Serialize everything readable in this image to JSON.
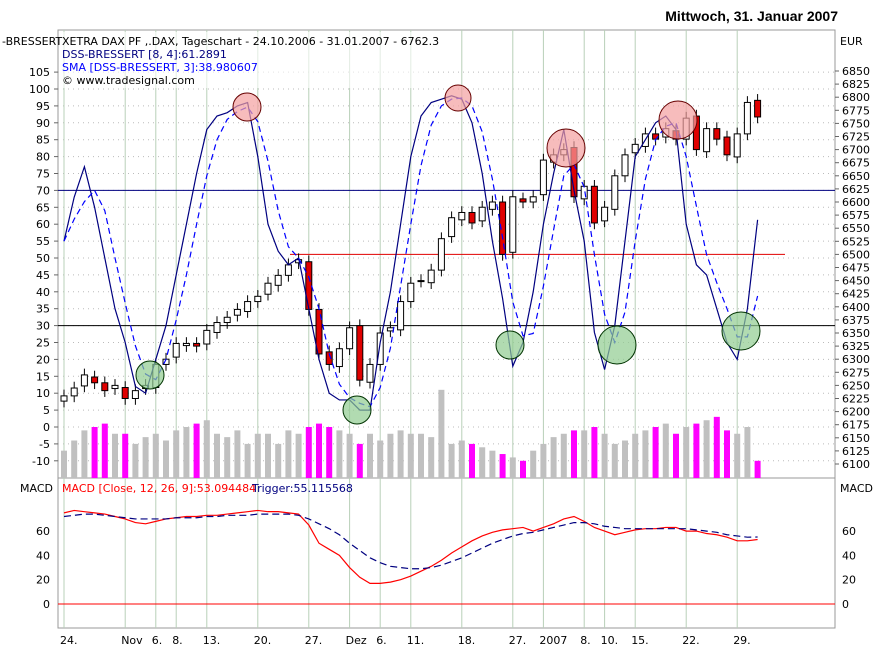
{
  "header": {
    "date_title": "Mittwoch, 31. Januar 2007"
  },
  "chart_data": {
    "type": "candlestick",
    "left_axis_label": "-BRESSERT",
    "right_axis_label": "EUR",
    "legend": {
      "instrument": "XETRA DAX PF ,.DAX, Tageschart - 24.10.2006 - 31.01.2007 - 6762.3",
      "dss": "DSS-BRESSERT [8, 4]:61.2891",
      "sma": "SMA [DSS-BRESSERT, 3]:38.980607",
      "copyright": "© www.tradesignal.com"
    },
    "price_ticks": [
      6850,
      6825,
      6800,
      6775,
      6750,
      6725,
      6700,
      6675,
      6650,
      6625,
      6600,
      6575,
      6550,
      6525,
      6500,
      6475,
      6450,
      6425,
      6400,
      6375,
      6350,
      6325,
      6300,
      6275,
      6250,
      6225,
      6200,
      6175,
      6150,
      6125,
      6100
    ],
    "osc_ticks": [
      105,
      100,
      95,
      90,
      85,
      80,
      75,
      70,
      65,
      60,
      55,
      50,
      45,
      40,
      35,
      30,
      25,
      20,
      15,
      10,
      5,
      0,
      -5,
      -10
    ],
    "osc_levels": {
      "upper": 70,
      "lower": 30,
      "price_line": 6500
    },
    "closes": [
      6230,
      6245,
      6270,
      6255,
      6240,
      6250,
      6225,
      6240,
      6250,
      6290,
      6300,
      6330,
      6330,
      6325,
      6355,
      6370,
      6380,
      6395,
      6410,
      6420,
      6445,
      6460,
      6480,
      6490,
      6395,
      6310,
      6290,
      6320,
      6360,
      6260,
      6290,
      6350,
      6360,
      6410,
      6445,
      6450,
      6470,
      6530,
      6570,
      6580,
      6560,
      6590,
      6600,
      6500,
      6610,
      6600,
      6610,
      6680,
      6690,
      6700,
      6610,
      6630,
      6560,
      6590,
      6650,
      6690,
      6710,
      6730,
      6720,
      6740,
      6720,
      6760,
      6700,
      6740,
      6720,
      6690,
      6730,
      6790,
      6762.3
    ],
    "dss": [
      55,
      68,
      77,
      65,
      50,
      35,
      25,
      12,
      10,
      20,
      30,
      45,
      60,
      75,
      88,
      92,
      93,
      95,
      96,
      80,
      60,
      52,
      48,
      50,
      35,
      20,
      10,
      8,
      8,
      5,
      5,
      25,
      40,
      60,
      80,
      92,
      96,
      97,
      98,
      97,
      90,
      75,
      55,
      38,
      18,
      25,
      40,
      60,
      75,
      88,
      70,
      55,
      28,
      17,
      30,
      55,
      80,
      85,
      90,
      92,
      88,
      60,
      48,
      45,
      35,
      25,
      20,
      35,
      61.29
    ],
    "histogram": [
      -7,
      -4,
      -1,
      0,
      1,
      -2,
      -2,
      -5,
      -3,
      -2,
      -4,
      -1,
      0,
      1,
      2,
      -2,
      -3,
      -1,
      -5,
      -2,
      -2,
      -5,
      -1,
      -2,
      0,
      1,
      0,
      -1,
      -2,
      -5,
      -2,
      -4,
      -2,
      -1,
      -2,
      -2,
      -3,
      11,
      -5,
      -4,
      -5,
      -6,
      -7,
      -8,
      -9,
      -10,
      -7,
      -5,
      -3,
      -2,
      -1,
      -1,
      0,
      -2,
      -5,
      -4,
      -2,
      -1,
      0,
      1,
      -2,
      0,
      1,
      2,
      3,
      -1,
      -2,
      0,
      -10
    ],
    "macd_ticks": [
      60,
      40,
      20,
      0
    ],
    "macd_legend": "MACD [Close, 12, 26, 9]:53.094484",
    "trigger_legend": "Trigger:55.115568",
    "macd_label": "MACD",
    "macd": [
      75,
      77,
      76,
      75,
      74,
      72,
      70,
      67,
      66,
      68,
      70,
      71,
      72,
      72,
      73,
      73,
      74,
      75,
      76,
      77,
      76,
      76,
      75,
      74,
      65,
      50,
      45,
      40,
      30,
      22,
      17,
      17,
      18,
      20,
      23,
      27,
      31,
      36,
      42,
      47,
      52,
      56,
      59,
      61,
      62,
      63,
      60,
      63,
      66,
      70,
      72,
      68,
      63,
      60,
      57,
      59,
      61,
      62,
      62,
      63,
      63,
      60,
      60,
      58,
      57,
      55,
      52,
      52,
      53.09
    ],
    "trigger": [
      72,
      73,
      74,
      74,
      73,
      72,
      71,
      70,
      70,
      70,
      70,
      71,
      71,
      71,
      72,
      72,
      73,
      73,
      73,
      74,
      74,
      74,
      74,
      73,
      70,
      66,
      62,
      57,
      50,
      44,
      38,
      34,
      31,
      30,
      29,
      29,
      30,
      32,
      35,
      38,
      42,
      46,
      50,
      53,
      56,
      58,
      59,
      61,
      63,
      65,
      67,
      67,
      66,
      64,
      63,
      62,
      62,
      62,
      62,
      62,
      62,
      62,
      61,
      60,
      59,
      57,
      56,
      55,
      55.12
    ],
    "x_ticks": [
      {
        "i": 0,
        "label": "24."
      },
      {
        "i": 6,
        "label": "Nov"
      },
      {
        "i": 9,
        "label": "6."
      },
      {
        "i": 11,
        "label": "8."
      },
      {
        "i": 14,
        "label": "13."
      },
      {
        "i": 19,
        "label": "20."
      },
      {
        "i": 24,
        "label": "27."
      },
      {
        "i": 28,
        "label": "Dez"
      },
      {
        "i": 31,
        "label": "6."
      },
      {
        "i": 34,
        "label": "11."
      },
      {
        "i": 39,
        "label": "18."
      },
      {
        "i": 44,
        "label": "27."
      },
      {
        "i": 47,
        "label": "2007"
      },
      {
        "i": 51,
        "label": "8."
      },
      {
        "i": 53,
        "label": "10."
      },
      {
        "i": 56,
        "label": "15."
      },
      {
        "i": 61,
        "label": "22."
      },
      {
        "i": 66,
        "label": "29."
      }
    ],
    "colors": {
      "up": "#ffffff",
      "down": "#e00000",
      "dss": "#000080",
      "sma": "#0000ff",
      "macd": "#ff0000",
      "trigger": "#000080",
      "hist_up": "#c0c0c0",
      "hist_down": "#ff00ff",
      "grid": "#b8d0b8"
    }
  }
}
